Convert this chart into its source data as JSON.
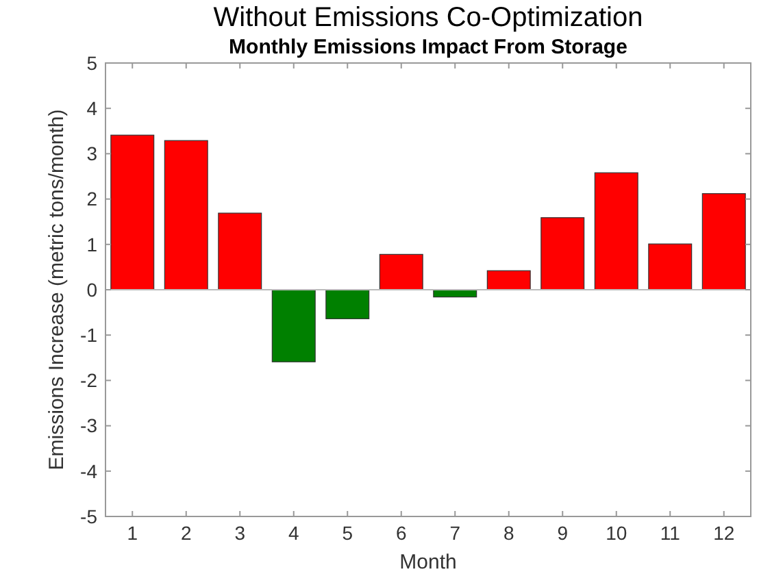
{
  "chart_data": {
    "type": "bar",
    "title": "Without Emissions Co-Optimization",
    "subtitle": "Monthly Emissions Impact From Storage",
    "xlabel": "Month",
    "ylabel": "Emissions Increase (metric tons/month)",
    "categories": [
      "1",
      "2",
      "3",
      "4",
      "5",
      "6",
      "7",
      "8",
      "9",
      "10",
      "11",
      "12"
    ],
    "values": [
      3.41,
      3.29,
      1.69,
      -1.59,
      -0.64,
      0.78,
      -0.16,
      0.42,
      1.59,
      2.58,
      1.01,
      2.12
    ],
    "colors": [
      "#ff0000",
      "#ff0000",
      "#ff0000",
      "#008000",
      "#008000",
      "#ff0000",
      "#008000",
      "#ff0000",
      "#ff0000",
      "#ff0000",
      "#ff0000",
      "#ff0000"
    ],
    "ylim": [
      -5,
      5
    ],
    "yticks": [
      -5,
      -4,
      -3,
      -2,
      -1,
      0,
      1,
      2,
      3,
      4,
      5
    ]
  }
}
